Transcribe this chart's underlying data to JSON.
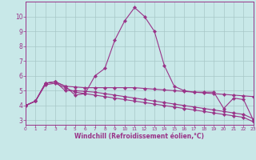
{
  "background_color": "#c8e8e8",
  "grid_color": "#a8c8c8",
  "line_color": "#993388",
  "xlabel": "Windchill (Refroidissement éolien,°C)",
  "xlim": [
    0,
    23
  ],
  "ylim": [
    2.7,
    11.0
  ],
  "yticks": [
    3,
    4,
    5,
    6,
    7,
    8,
    9,
    10
  ],
  "xticks": [
    0,
    1,
    2,
    3,
    4,
    5,
    6,
    7,
    8,
    9,
    10,
    11,
    12,
    13,
    14,
    15,
    16,
    17,
    18,
    19,
    20,
    21,
    22,
    23
  ],
  "line1_x": [
    0,
    1,
    2,
    3,
    4,
    5,
    6,
    7,
    8,
    9,
    10,
    11,
    12,
    13,
    14,
    15,
    16,
    17,
    18,
    19,
    20,
    21,
    22,
    23
  ],
  "line1_y": [
    4.0,
    4.3,
    5.5,
    5.6,
    5.3,
    4.7,
    4.8,
    6.0,
    6.5,
    8.4,
    9.7,
    10.6,
    10.0,
    9.0,
    6.7,
    5.3,
    5.0,
    4.9,
    4.9,
    4.9,
    3.8,
    4.5,
    4.4,
    3.0
  ],
  "line2_x": [
    0,
    1,
    2,
    3,
    4,
    5,
    6,
    7,
    8,
    9,
    10,
    11,
    12,
    13,
    14,
    15,
    16,
    17,
    18,
    19,
    20,
    21,
    22,
    23
  ],
  "line2_y": [
    4.0,
    4.3,
    5.5,
    5.6,
    5.3,
    5.25,
    5.2,
    5.2,
    5.2,
    5.2,
    5.2,
    5.2,
    5.15,
    5.1,
    5.05,
    5.0,
    4.95,
    4.9,
    4.85,
    4.8,
    4.75,
    4.7,
    4.65,
    4.6
  ],
  "line3_x": [
    0,
    1,
    2,
    3,
    4,
    5,
    6,
    7,
    8,
    9,
    10,
    11,
    12,
    13,
    14,
    15,
    16,
    17,
    18,
    19,
    20,
    21,
    22,
    23
  ],
  "line3_y": [
    4.0,
    4.3,
    5.5,
    5.6,
    5.0,
    5.0,
    4.95,
    4.9,
    4.8,
    4.7,
    4.6,
    4.5,
    4.4,
    4.3,
    4.2,
    4.1,
    4.0,
    3.9,
    3.8,
    3.7,
    3.6,
    3.5,
    3.4,
    3.1
  ],
  "line4_x": [
    0,
    1,
    2,
    3,
    4,
    5,
    6,
    7,
    8,
    9,
    10,
    11,
    12,
    13,
    14,
    15,
    16,
    17,
    18,
    19,
    20,
    21,
    22,
    23
  ],
  "line4_y": [
    4.0,
    4.3,
    5.4,
    5.5,
    5.2,
    4.9,
    4.8,
    4.7,
    4.6,
    4.5,
    4.4,
    4.3,
    4.2,
    4.1,
    4.0,
    3.9,
    3.8,
    3.7,
    3.6,
    3.5,
    3.4,
    3.3,
    3.2,
    2.9
  ]
}
